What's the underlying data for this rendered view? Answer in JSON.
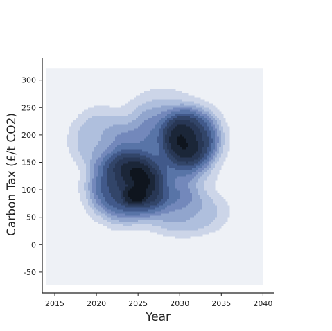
{
  "chart_data": {
    "type": "heatmap",
    "subtype": "kde-contour",
    "title": "",
    "xlabel": "Year",
    "ylabel": "Carbon Tax (£/t CO2)",
    "xlim": [
      2013.5,
      2041.3
    ],
    "ylim": [
      -88,
      340
    ],
    "kde_extent": {
      "x": [
        2014,
        2040
      ],
      "y": [
        -73,
        322
      ]
    },
    "xticks": [
      2015,
      2020,
      2025,
      2030,
      2035,
      2040
    ],
    "yticks": [
      -50,
      0,
      50,
      100,
      150,
      200,
      250,
      300
    ],
    "grid": false,
    "legend": "none",
    "colors": {
      "background": "#eef1f6",
      "levels": [
        "#ccd5e8",
        "#afbfdd",
        "#91a5cd",
        "#7388bb",
        "#5874a7",
        "#41598a",
        "#324569",
        "#283755",
        "#1b2638",
        "#0f151e"
      ]
    },
    "density_modes": [
      {
        "x": 2023.5,
        "y": 105,
        "sx": 3.2,
        "sy": 45,
        "w": 1.0
      },
      {
        "x": 2031.5,
        "y": 195,
        "sx": 2.6,
        "sy": 40,
        "w": 0.8
      },
      {
        "x": 2028.0,
        "y": 165,
        "sx": 4.0,
        "sy": 70,
        "w": 0.7
      },
      {
        "x": 2020.5,
        "y": 190,
        "sx": 2.5,
        "sy": 40,
        "w": 0.35
      },
      {
        "x": 2030.5,
        "y": 60,
        "sx": 3.5,
        "sy": 30,
        "w": 0.35
      },
      {
        "x": 2024.5,
        "y": 88,
        "sx": 1.0,
        "sy": 12,
        "w": 0.3
      }
    ]
  }
}
